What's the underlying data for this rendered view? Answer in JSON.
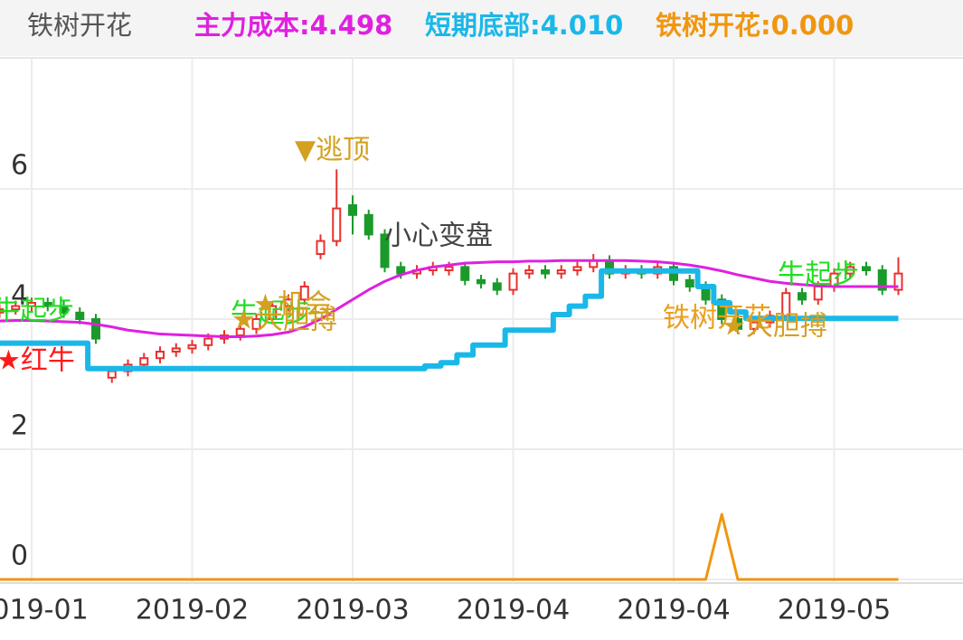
{
  "header": {
    "items": [
      "铁树开花",
      "主力成本:4.498",
      "短期底部:4.010",
      "铁树开花:0.000"
    ],
    "colors": [
      "#555555",
      "#e020e0",
      "#1ab8e8",
      "#f0960f"
    ]
  },
  "chart_data": {
    "type": "candlestick",
    "categories": [
      null,
      null,
      "2019-01",
      null,
      null,
      null,
      null,
      null,
      null,
      null,
      null,
      null,
      "2019-02",
      null,
      null,
      null,
      null,
      null,
      null,
      null,
      null,
      null,
      "2019-03",
      null,
      null,
      null,
      null,
      null,
      null,
      null,
      null,
      null,
      "2019-04",
      null,
      null,
      null,
      null,
      null,
      null,
      null,
      null,
      null,
      "2019-04",
      null,
      null,
      null,
      null,
      null,
      null,
      null,
      null,
      null,
      "2019-05",
      null,
      null,
      null,
      null
    ],
    "open": [
      4.1,
      4.15,
      4.2,
      4.25,
      4.2,
      4.1,
      4.0,
      3.1,
      3.2,
      3.3,
      3.4,
      3.5,
      3.55,
      3.6,
      3.7,
      3.75,
      3.85,
      4.0,
      4.2,
      4.3,
      5.0,
      5.2,
      5.75,
      5.6,
      5.3,
      4.8,
      4.7,
      4.75,
      4.75,
      4.8,
      4.6,
      4.55,
      4.45,
      4.7,
      4.75,
      4.7,
      4.75,
      4.8,
      4.9,
      4.7,
      4.75,
      4.7,
      4.8,
      4.6,
      4.5,
      4.3,
      4.0,
      3.85,
      3.95,
      4.05,
      4.4,
      4.3,
      4.5,
      4.7,
      4.8,
      4.75,
      4.45
    ],
    "high": [
      4.23,
      4.28,
      4.33,
      4.33,
      4.28,
      4.18,
      4.08,
      3.28,
      3.38,
      3.48,
      3.58,
      3.63,
      3.68,
      3.78,
      3.83,
      3.93,
      4.08,
      4.28,
      4.38,
      4.58,
      5.3,
      6.3,
      5.9,
      5.68,
      5.38,
      4.88,
      4.83,
      4.88,
      4.88,
      4.88,
      4.68,
      4.63,
      4.78,
      4.83,
      4.83,
      4.83,
      4.88,
      5.0,
      4.98,
      4.83,
      4.83,
      4.88,
      4.88,
      4.68,
      4.58,
      4.38,
      4.08,
      4.03,
      4.13,
      4.48,
      4.48,
      4.58,
      4.78,
      4.88,
      4.88,
      4.83,
      4.95
    ],
    "low": [
      4.02,
      4.07,
      4.12,
      4.12,
      4.02,
      3.92,
      3.62,
      3.02,
      3.12,
      3.22,
      3.32,
      3.42,
      3.47,
      3.52,
      3.62,
      3.67,
      3.77,
      3.92,
      4.12,
      4.22,
      4.92,
      5.12,
      5.3,
      5.22,
      4.72,
      4.62,
      4.62,
      4.67,
      4.67,
      4.52,
      4.47,
      4.37,
      4.37,
      4.62,
      4.62,
      4.62,
      4.67,
      4.72,
      4.62,
      4.62,
      4.62,
      4.62,
      4.52,
      4.42,
      4.22,
      3.92,
      3.77,
      3.77,
      3.87,
      3.97,
      4.22,
      4.22,
      4.42,
      4.62,
      4.67,
      4.37,
      4.37
    ],
    "close": [
      4.15,
      4.2,
      4.25,
      4.2,
      4.1,
      4.0,
      3.7,
      3.2,
      3.3,
      3.4,
      3.5,
      3.55,
      3.6,
      3.7,
      3.75,
      3.85,
      4.0,
      4.2,
      4.3,
      4.5,
      5.2,
      5.7,
      5.6,
      5.3,
      4.8,
      4.7,
      4.75,
      4.8,
      4.8,
      4.6,
      4.55,
      4.45,
      4.7,
      4.75,
      4.7,
      4.75,
      4.8,
      4.9,
      4.7,
      4.75,
      4.7,
      4.8,
      4.6,
      4.5,
      4.3,
      4.0,
      3.85,
      3.95,
      4.05,
      4.4,
      4.3,
      4.5,
      4.7,
      4.8,
      4.75,
      4.45,
      4.7
    ],
    "up_color": "#e8312e",
    "down_color": "#1a9a2a",
    "lines": [
      {
        "name": "主力成本",
        "color": "#e020e0",
        "width": 3,
        "values": [
          3.97,
          3.98,
          3.98,
          3.97,
          3.96,
          3.95,
          3.92,
          3.88,
          3.83,
          3.8,
          3.77,
          3.76,
          3.75,
          3.74,
          3.73,
          3.73,
          3.74,
          3.76,
          3.8,
          3.88,
          4.0,
          4.15,
          4.3,
          4.45,
          4.58,
          4.68,
          4.75,
          4.8,
          4.83,
          4.86,
          4.87,
          4.88,
          4.88,
          4.89,
          4.89,
          4.9,
          4.9,
          4.9,
          4.9,
          4.9,
          4.89,
          4.88,
          4.86,
          4.83,
          4.79,
          4.74,
          4.68,
          4.63,
          4.58,
          4.55,
          4.53,
          4.51,
          4.5,
          4.5,
          4.5,
          4.5,
          4.498
        ]
      },
      {
        "name": "短期底部",
        "color": "#1ab8e8",
        "width": 6,
        "step": true,
        "values": [
          3.63,
          3.63,
          3.63,
          3.63,
          3.63,
          3.63,
          3.24,
          3.24,
          3.24,
          3.24,
          3.24,
          3.24,
          3.24,
          3.24,
          3.24,
          3.24,
          3.24,
          3.24,
          3.24,
          3.24,
          3.24,
          3.24,
          3.24,
          3.24,
          3.24,
          3.24,
          3.24,
          3.28,
          3.33,
          3.45,
          3.6,
          3.6,
          3.83,
          3.83,
          3.83,
          4.07,
          4.2,
          4.35,
          4.74,
          4.74,
          4.74,
          4.74,
          4.74,
          4.74,
          4.5,
          4.25,
          4.11,
          4.01,
          4.01,
          4.01,
          4.01,
          4.01,
          4.01,
          4.01,
          4.01,
          4.01,
          4.01
        ]
      },
      {
        "name": "铁树开花",
        "color": "#f0960f",
        "width": 3,
        "values": [
          0,
          0,
          0,
          0,
          0,
          0,
          0,
          0,
          0,
          0,
          0,
          0,
          0,
          0,
          0,
          0,
          0,
          0,
          0,
          0,
          0,
          0,
          0,
          0,
          0,
          0,
          0,
          0,
          0,
          0,
          0,
          0,
          0,
          0,
          0,
          0,
          0,
          0,
          0,
          0,
          0,
          0,
          0,
          0,
          0,
          1,
          0,
          0,
          0,
          0,
          0,
          0,
          0,
          0,
          0,
          0,
          0
        ]
      }
    ],
    "ylim": [
      0,
      8.9
    ],
    "yticks": [
      0,
      2,
      4,
      6
    ],
    "grid": true,
    "annotations": [
      {
        "text": "牛起步",
        "color": "#22dd22"
      },
      {
        "text": "★红牛",
        "color": "#ff1a1a"
      },
      {
        "text": "牛起步",
        "color": "#22dd22"
      },
      {
        "text": "★大胆搏",
        "color": "#d4a020"
      },
      {
        "text": "★机会",
        "color": "#d4a020"
      },
      {
        "text": "▼逃顶",
        "color": "#d4a020"
      },
      {
        "text": "小心变盘",
        "color": "#444444"
      },
      {
        "text": "铁树开花",
        "color": "#e8a020"
      },
      {
        "text": "★大胆搏",
        "color": "#d4a020"
      },
      {
        "text": "牛起步",
        "color": "#22dd22"
      }
    ]
  }
}
